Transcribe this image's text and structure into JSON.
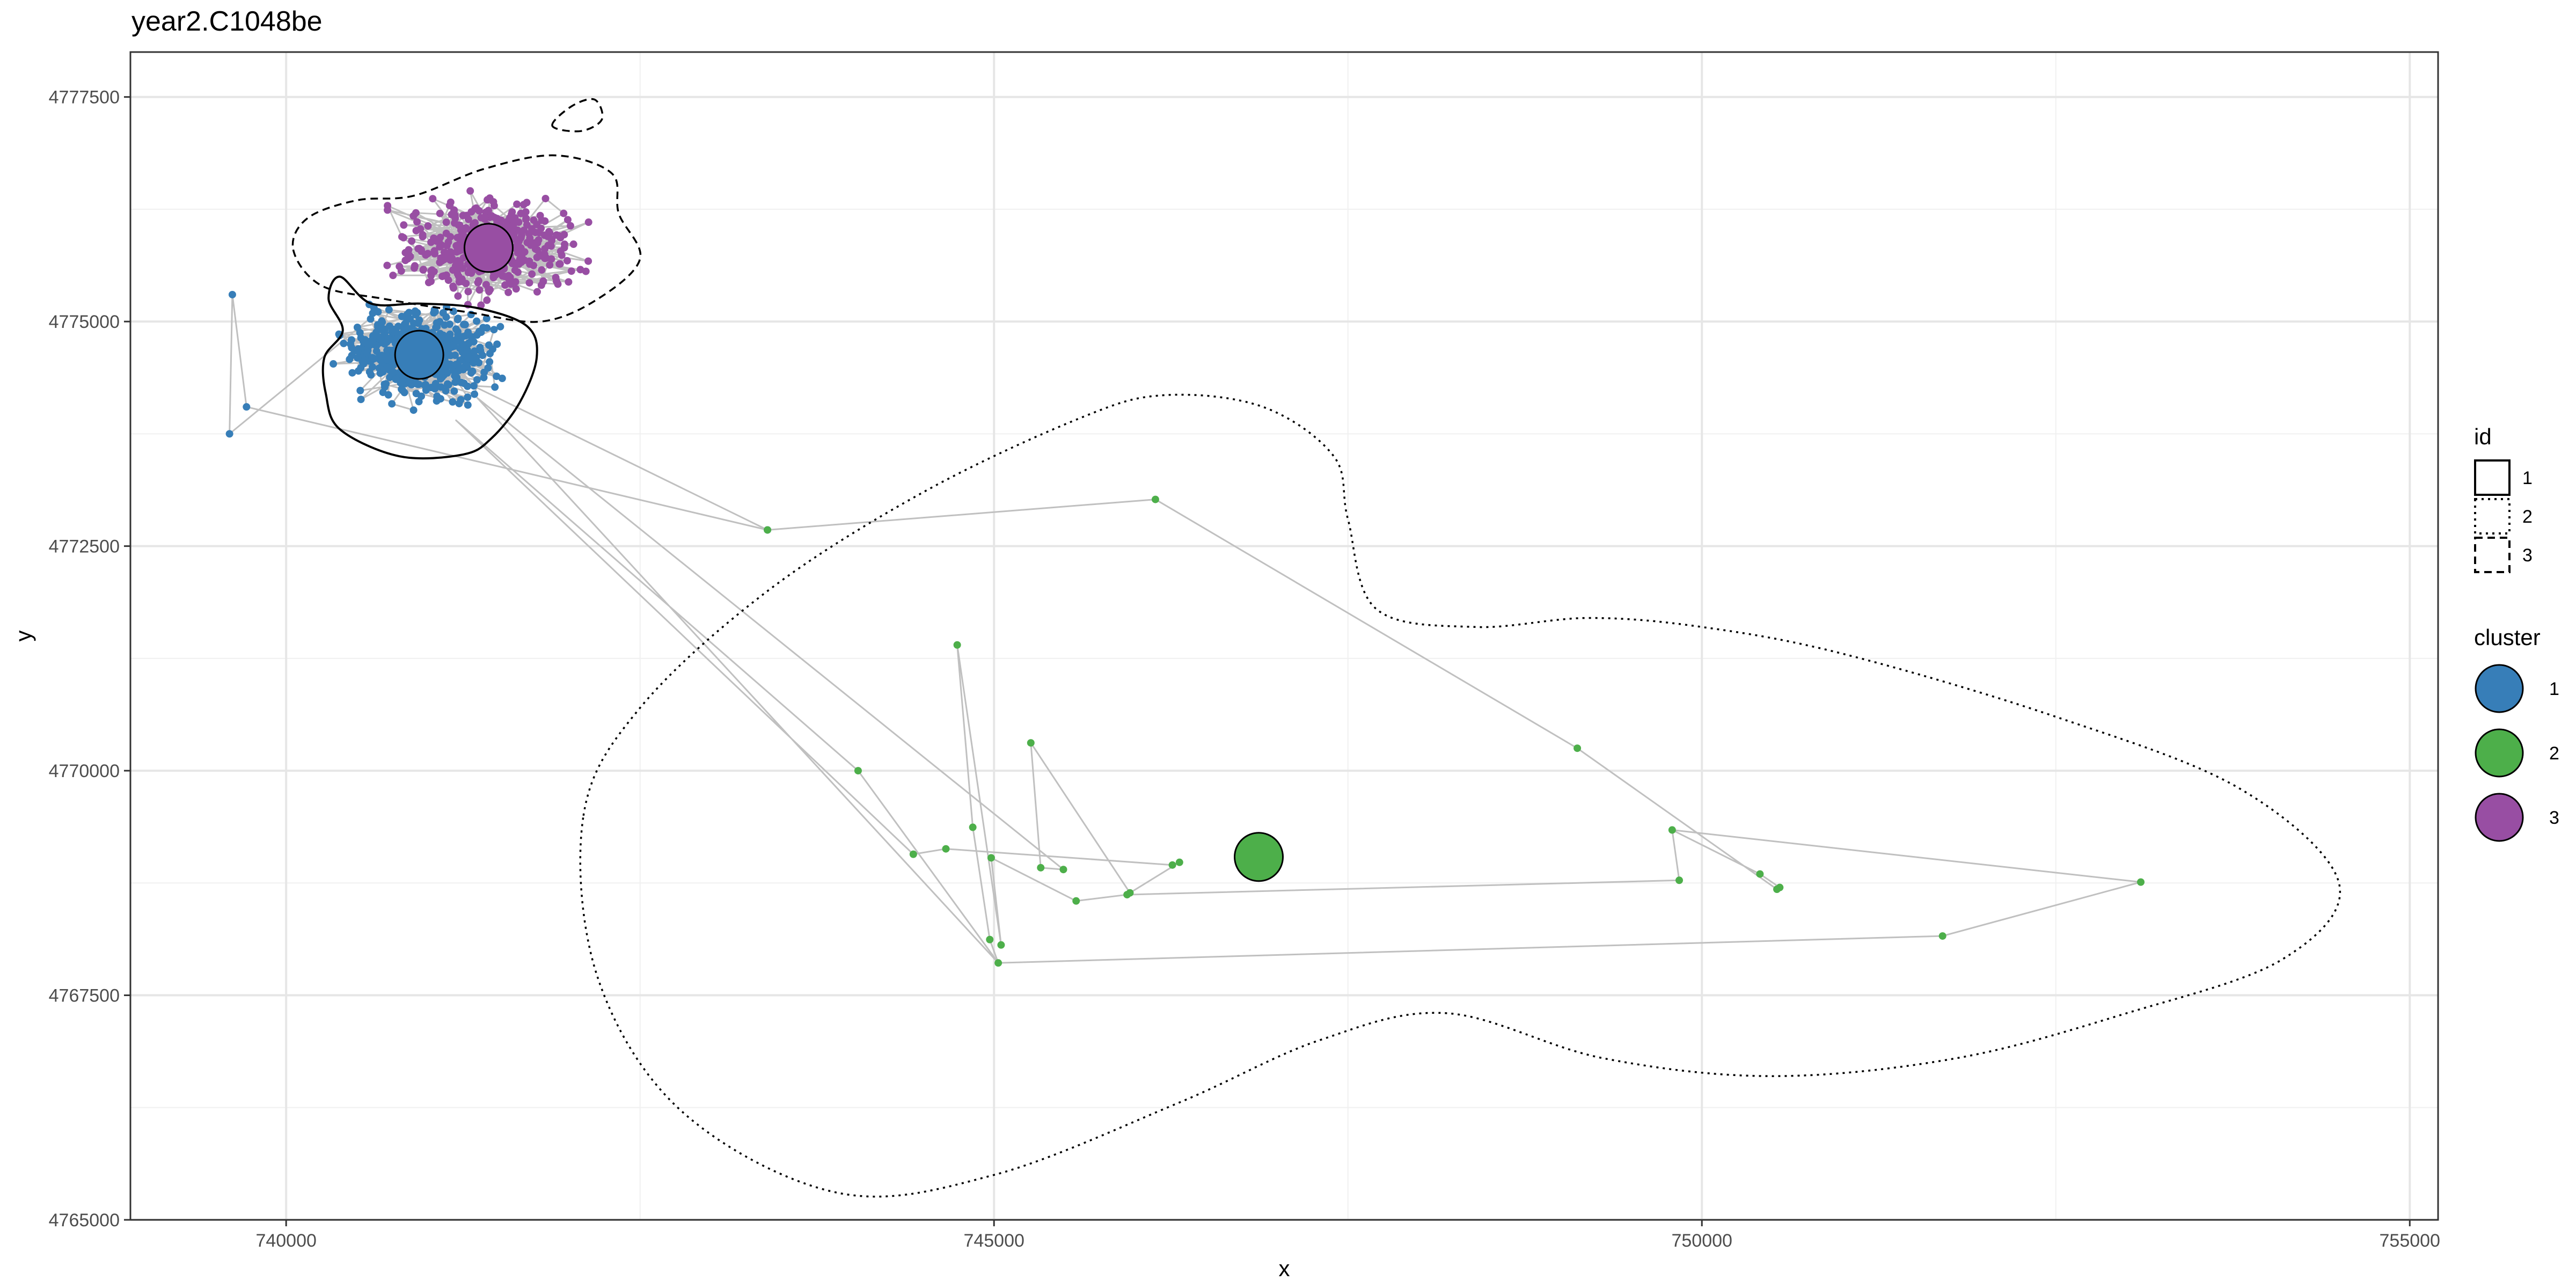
{
  "chart_data": {
    "type": "scatter",
    "title": "year2.C1048be",
    "xlabel": "x",
    "ylabel": "y",
    "xlim": [
      738900,
      755200
    ],
    "ylim": [
      4765000,
      4778000
    ],
    "x_ticks": [
      740000,
      745000,
      750000,
      755000
    ],
    "y_ticks": [
      4765000,
      4767500,
      4770000,
      4772500,
      4775000,
      4777500
    ],
    "grid": true,
    "legend_placement": "right",
    "colors": {
      "cluster1": "#377EB8",
      "cluster2": "#4DAF4A",
      "cluster3": "#984EA3",
      "track": "#c0c0c0"
    },
    "clusters": [
      {
        "name": "1",
        "color": "#377EB8",
        "centroid": [
          740940,
          4774630
        ],
        "bounds": {
          "x": [
            739800,
            741800
          ],
          "y": [
            4773600,
            4775500
          ]
        }
      },
      {
        "name": "2",
        "color": "#4DAF4A",
        "centroid": [
          746870,
          4769040
        ]
      },
      {
        "name": "3",
        "color": "#984EA3",
        "centroid": [
          741430,
          4775820
        ],
        "bounds": {
          "x": [
            740400,
            742500
          ],
          "y": [
            4775000,
            4777200
          ]
        }
      }
    ],
    "cluster2_points": [
      [
        743400,
        4772680
      ],
      [
        746140,
        4773020
      ],
      [
        744740,
        4771400
      ],
      [
        745260,
        4770310
      ],
      [
        744040,
        4770000
      ],
      [
        744850,
        4769370
      ],
      [
        744430,
        4769070
      ],
      [
        744660,
        4769130
      ],
      [
        744980,
        4769030
      ],
      [
        745330,
        4768920
      ],
      [
        745490,
        4768900
      ],
      [
        745580,
        4768550
      ],
      [
        745960,
        4768640
      ],
      [
        745940,
        4768620
      ],
      [
        746260,
        4768950
      ],
      [
        746310,
        4768980
      ],
      [
        744970,
        4768120
      ],
      [
        745050,
        4768060
      ],
      [
        745030,
        4767860
      ],
      [
        749120,
        4770250
      ],
      [
        749790,
        4769340
      ],
      [
        749840,
        4768780
      ],
      [
        750410,
        4768850
      ],
      [
        750530,
        4768680
      ],
      [
        750550,
        4768700
      ],
      [
        751700,
        4768160
      ],
      [
        753100,
        4768760
      ]
    ],
    "cluster2_path": [
      [
        741300,
        4774300
      ],
      [
        743400,
        4772680
      ],
      [
        746140,
        4773020
      ],
      [
        749120,
        4770250
      ],
      [
        750530,
        4768680
      ],
      [
        750550,
        4768700
      ],
      [
        750410,
        4768850
      ],
      [
        749790,
        4769340
      ],
      [
        749840,
        4768780
      ],
      [
        745940,
        4768620
      ],
      [
        745580,
        4768550
      ],
      [
        744980,
        4769030
      ],
      [
        745050,
        4768060
      ],
      [
        744740,
        4771400
      ],
      [
        744850,
        4769370
      ],
      [
        744970,
        4768120
      ],
      [
        745030,
        4767860
      ],
      [
        744040,
        4770000
      ],
      [
        741200,
        4773900
      ],
      [
        744430,
        4769070
      ],
      [
        744660,
        4769130
      ],
      [
        746260,
        4768950
      ],
      [
        746310,
        4768980
      ],
      [
        745960,
        4768640
      ],
      [
        745260,
        4770310
      ],
      [
        745330,
        4768920
      ],
      [
        745490,
        4768900
      ],
      [
        741350,
        4774150
      ],
      [
        745030,
        4767860
      ],
      [
        751700,
        4768160
      ],
      [
        753100,
        4768760
      ],
      [
        749790,
        4769340
      ]
    ],
    "cluster1_outliers": [
      [
        739600,
        4773750
      ],
      [
        739620,
        4775300
      ],
      [
        739720,
        4774050
      ],
      [
        743400,
        4772680
      ]
    ],
    "contours": [
      {
        "id": "1",
        "dash": "solid",
        "points": [
          [
            740280,
            4774200
          ],
          [
            740380,
            4773800
          ],
          [
            740800,
            4773500
          ],
          [
            741250,
            4773520
          ],
          [
            741450,
            4773700
          ],
          [
            741650,
            4774100
          ],
          [
            741770,
            4774600
          ],
          [
            741700,
            4774950
          ],
          [
            741350,
            4775150
          ],
          [
            740950,
            4775200
          ],
          [
            740600,
            4775200
          ],
          [
            740380,
            4775500
          ],
          [
            740300,
            4775250
          ],
          [
            740400,
            4774900
          ],
          [
            740270,
            4774600
          ]
        ]
      },
      {
        "id": "2",
        "dash": "dotted",
        "points": [
          [
            742100,
            4769500
          ],
          [
            742500,
            4770700
          ],
          [
            743400,
            4772000
          ],
          [
            744500,
            4773100
          ],
          [
            745600,
            4773920
          ],
          [
            746200,
            4774180
          ],
          [
            746900,
            4774050
          ],
          [
            747400,
            4773500
          ],
          [
            747500,
            4772800
          ],
          [
            747700,
            4771800
          ],
          [
            748400,
            4771600
          ],
          [
            749200,
            4771700
          ],
          [
            750000,
            4771600
          ],
          [
            751000,
            4771300
          ],
          [
            752500,
            4770600
          ],
          [
            753800,
            4769800
          ],
          [
            754500,
            4768750
          ],
          [
            754100,
            4767900
          ],
          [
            753000,
            4767300
          ],
          [
            751800,
            4766800
          ],
          [
            750500,
            4766600
          ],
          [
            749300,
            4766800
          ],
          [
            748200,
            4767300
          ],
          [
            747300,
            4767000
          ],
          [
            746300,
            4766300
          ],
          [
            745000,
            4765500
          ],
          [
            743900,
            4765300
          ],
          [
            742800,
            4766200
          ],
          [
            742200,
            4767700
          ]
        ]
      },
      {
        "id": "3",
        "dash": "dashed",
        "points": [
          [
            740050,
            4775800
          ],
          [
            740250,
            4775400
          ],
          [
            740700,
            4775250
          ],
          [
            741300,
            4775100
          ],
          [
            741800,
            4775000
          ],
          [
            742200,
            4775250
          ],
          [
            742500,
            4775700
          ],
          [
            742350,
            4776200
          ],
          [
            742300,
            4776650
          ],
          [
            741900,
            4776850
          ],
          [
            741400,
            4776700
          ],
          [
            740900,
            4776400
          ],
          [
            740500,
            4776350
          ],
          [
            740150,
            4776150
          ]
        ]
      },
      {
        "id": "3",
        "dash": "dashed",
        "points": [
          [
            741880,
            4777180
          ],
          [
            742020,
            4777400
          ],
          [
            742180,
            4777470
          ],
          [
            742230,
            4777250
          ],
          [
            742080,
            4777120
          ]
        ]
      }
    ]
  },
  "legend": {
    "id_title": "id",
    "id_items": [
      {
        "label": "1",
        "dash": "solid"
      },
      {
        "label": "2",
        "dash": "dotted"
      },
      {
        "label": "3",
        "dash": "dashed"
      }
    ],
    "cluster_title": "cluster",
    "cluster_items": [
      {
        "label": "1",
        "color": "#377EB8"
      },
      {
        "label": "2",
        "color": "#4DAF4A"
      },
      {
        "label": "3",
        "color": "#984EA3"
      }
    ]
  }
}
